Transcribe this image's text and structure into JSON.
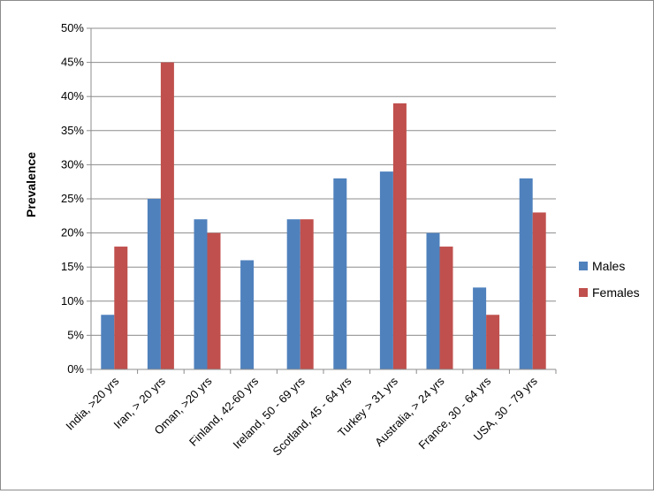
{
  "chart_data": {
    "type": "bar",
    "title": "",
    "xlabel": "",
    "ylabel": "Prevalence",
    "ylim": [
      0,
      50
    ],
    "yticks": [
      "0%",
      "5%",
      "10%",
      "15%",
      "20%",
      "25%",
      "30%",
      "35%",
      "40%",
      "45%",
      "50%"
    ],
    "grid": true,
    "legend_position": "right",
    "categories": [
      "India, >20 yrs",
      "Iran, > 20 yrs",
      "Oman, >20 yrs",
      "Finland, 42-60 yrs",
      "Ireland, 50 - 69 yrs",
      "Scotland, 45 - 64 yrs",
      "Turkey > 31 yrs",
      "Australia, > 24 yrs",
      "France, 30 - 64 yrs",
      "USA, 30 - 79 yrs"
    ],
    "series": [
      {
        "name": "Males",
        "color": "#4f81bd",
        "values": [
          8,
          25,
          22,
          16,
          22,
          28,
          29,
          20,
          12,
          28
        ]
      },
      {
        "name": "Females",
        "color": "#c0504d",
        "values": [
          18,
          45,
          20,
          null,
          22,
          null,
          39,
          18,
          8,
          23
        ]
      }
    ]
  }
}
